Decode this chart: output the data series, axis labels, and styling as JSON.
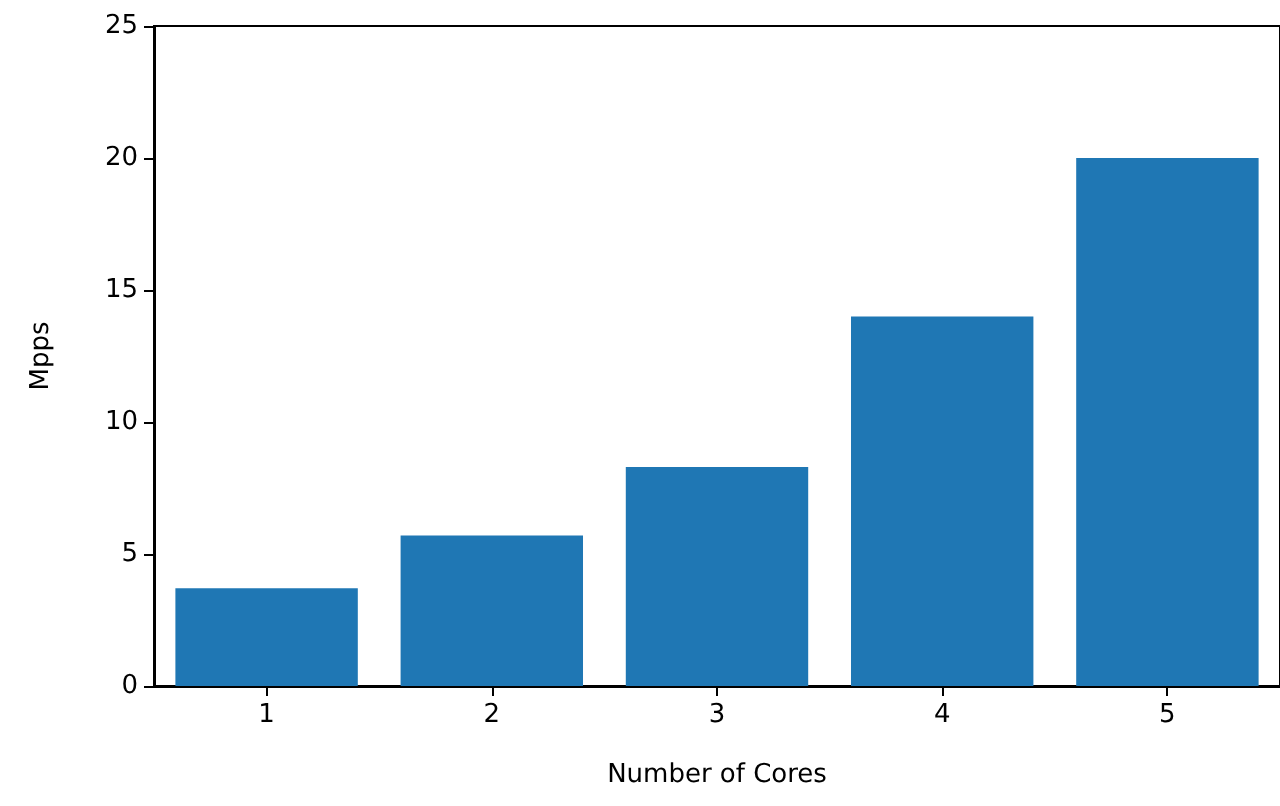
{
  "chart_data": {
    "type": "bar",
    "xlabel": "Number of Cores",
    "ylabel": "Mpps",
    "categories": [
      "1",
      "2",
      "3",
      "4",
      "5"
    ],
    "values": [
      3.7,
      5.7,
      8.3,
      14.0,
      20.0
    ],
    "color": "#1f77b4",
    "ylim": [
      0,
      25
    ],
    "yticks": [
      0,
      5,
      10,
      15,
      20,
      25
    ],
    "grid": false
  }
}
